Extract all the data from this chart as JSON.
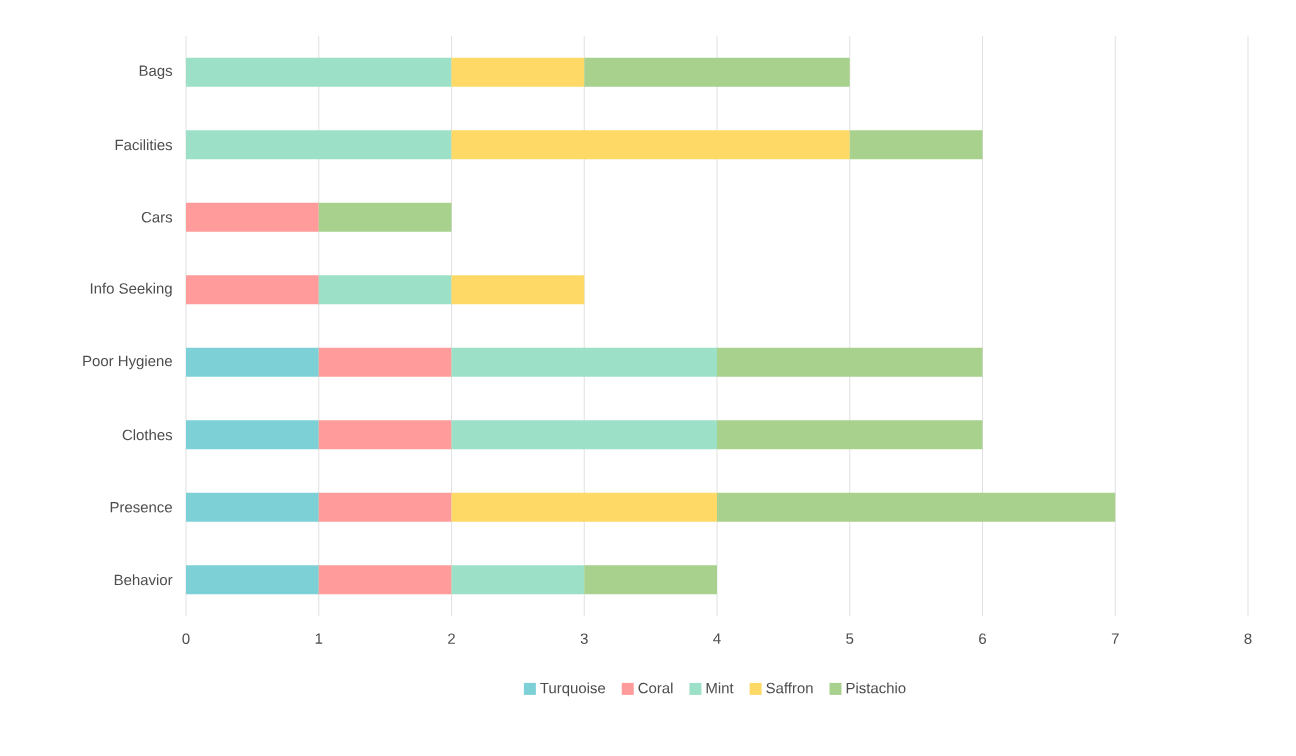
{
  "chart_data": {
    "type": "bar",
    "orientation": "horizontal",
    "stacked": true,
    "categories": [
      "Bags",
      "Facilities",
      "Cars",
      "Info Seeking",
      "Poor Hygiene",
      "Clothes",
      "Presence",
      "Behavior"
    ],
    "series": [
      {
        "name": "Turquoise",
        "color": "#7dd0d6",
        "values": [
          0,
          0,
          0,
          0,
          1,
          1,
          1,
          1
        ]
      },
      {
        "name": "Coral",
        "color": "#ff9b9b",
        "values": [
          0,
          0,
          1,
          1,
          1,
          1,
          1,
          1
        ]
      },
      {
        "name": "Mint",
        "color": "#9de0c8",
        "values": [
          2,
          2,
          0,
          1,
          2,
          2,
          0,
          1
        ]
      },
      {
        "name": "Saffron",
        "color": "#ffd966",
        "values": [
          1,
          3,
          0,
          1,
          0,
          0,
          2,
          0
        ]
      },
      {
        "name": "Pistachio",
        "color": "#a9d18e",
        "values": [
          2,
          1,
          1,
          0,
          2,
          2,
          3,
          1
        ]
      }
    ],
    "xlim": [
      0,
      8
    ],
    "xticks": [
      0,
      1,
      2,
      3,
      4,
      5,
      6,
      7,
      8
    ],
    "grid": "x",
    "legend": "bottom"
  }
}
